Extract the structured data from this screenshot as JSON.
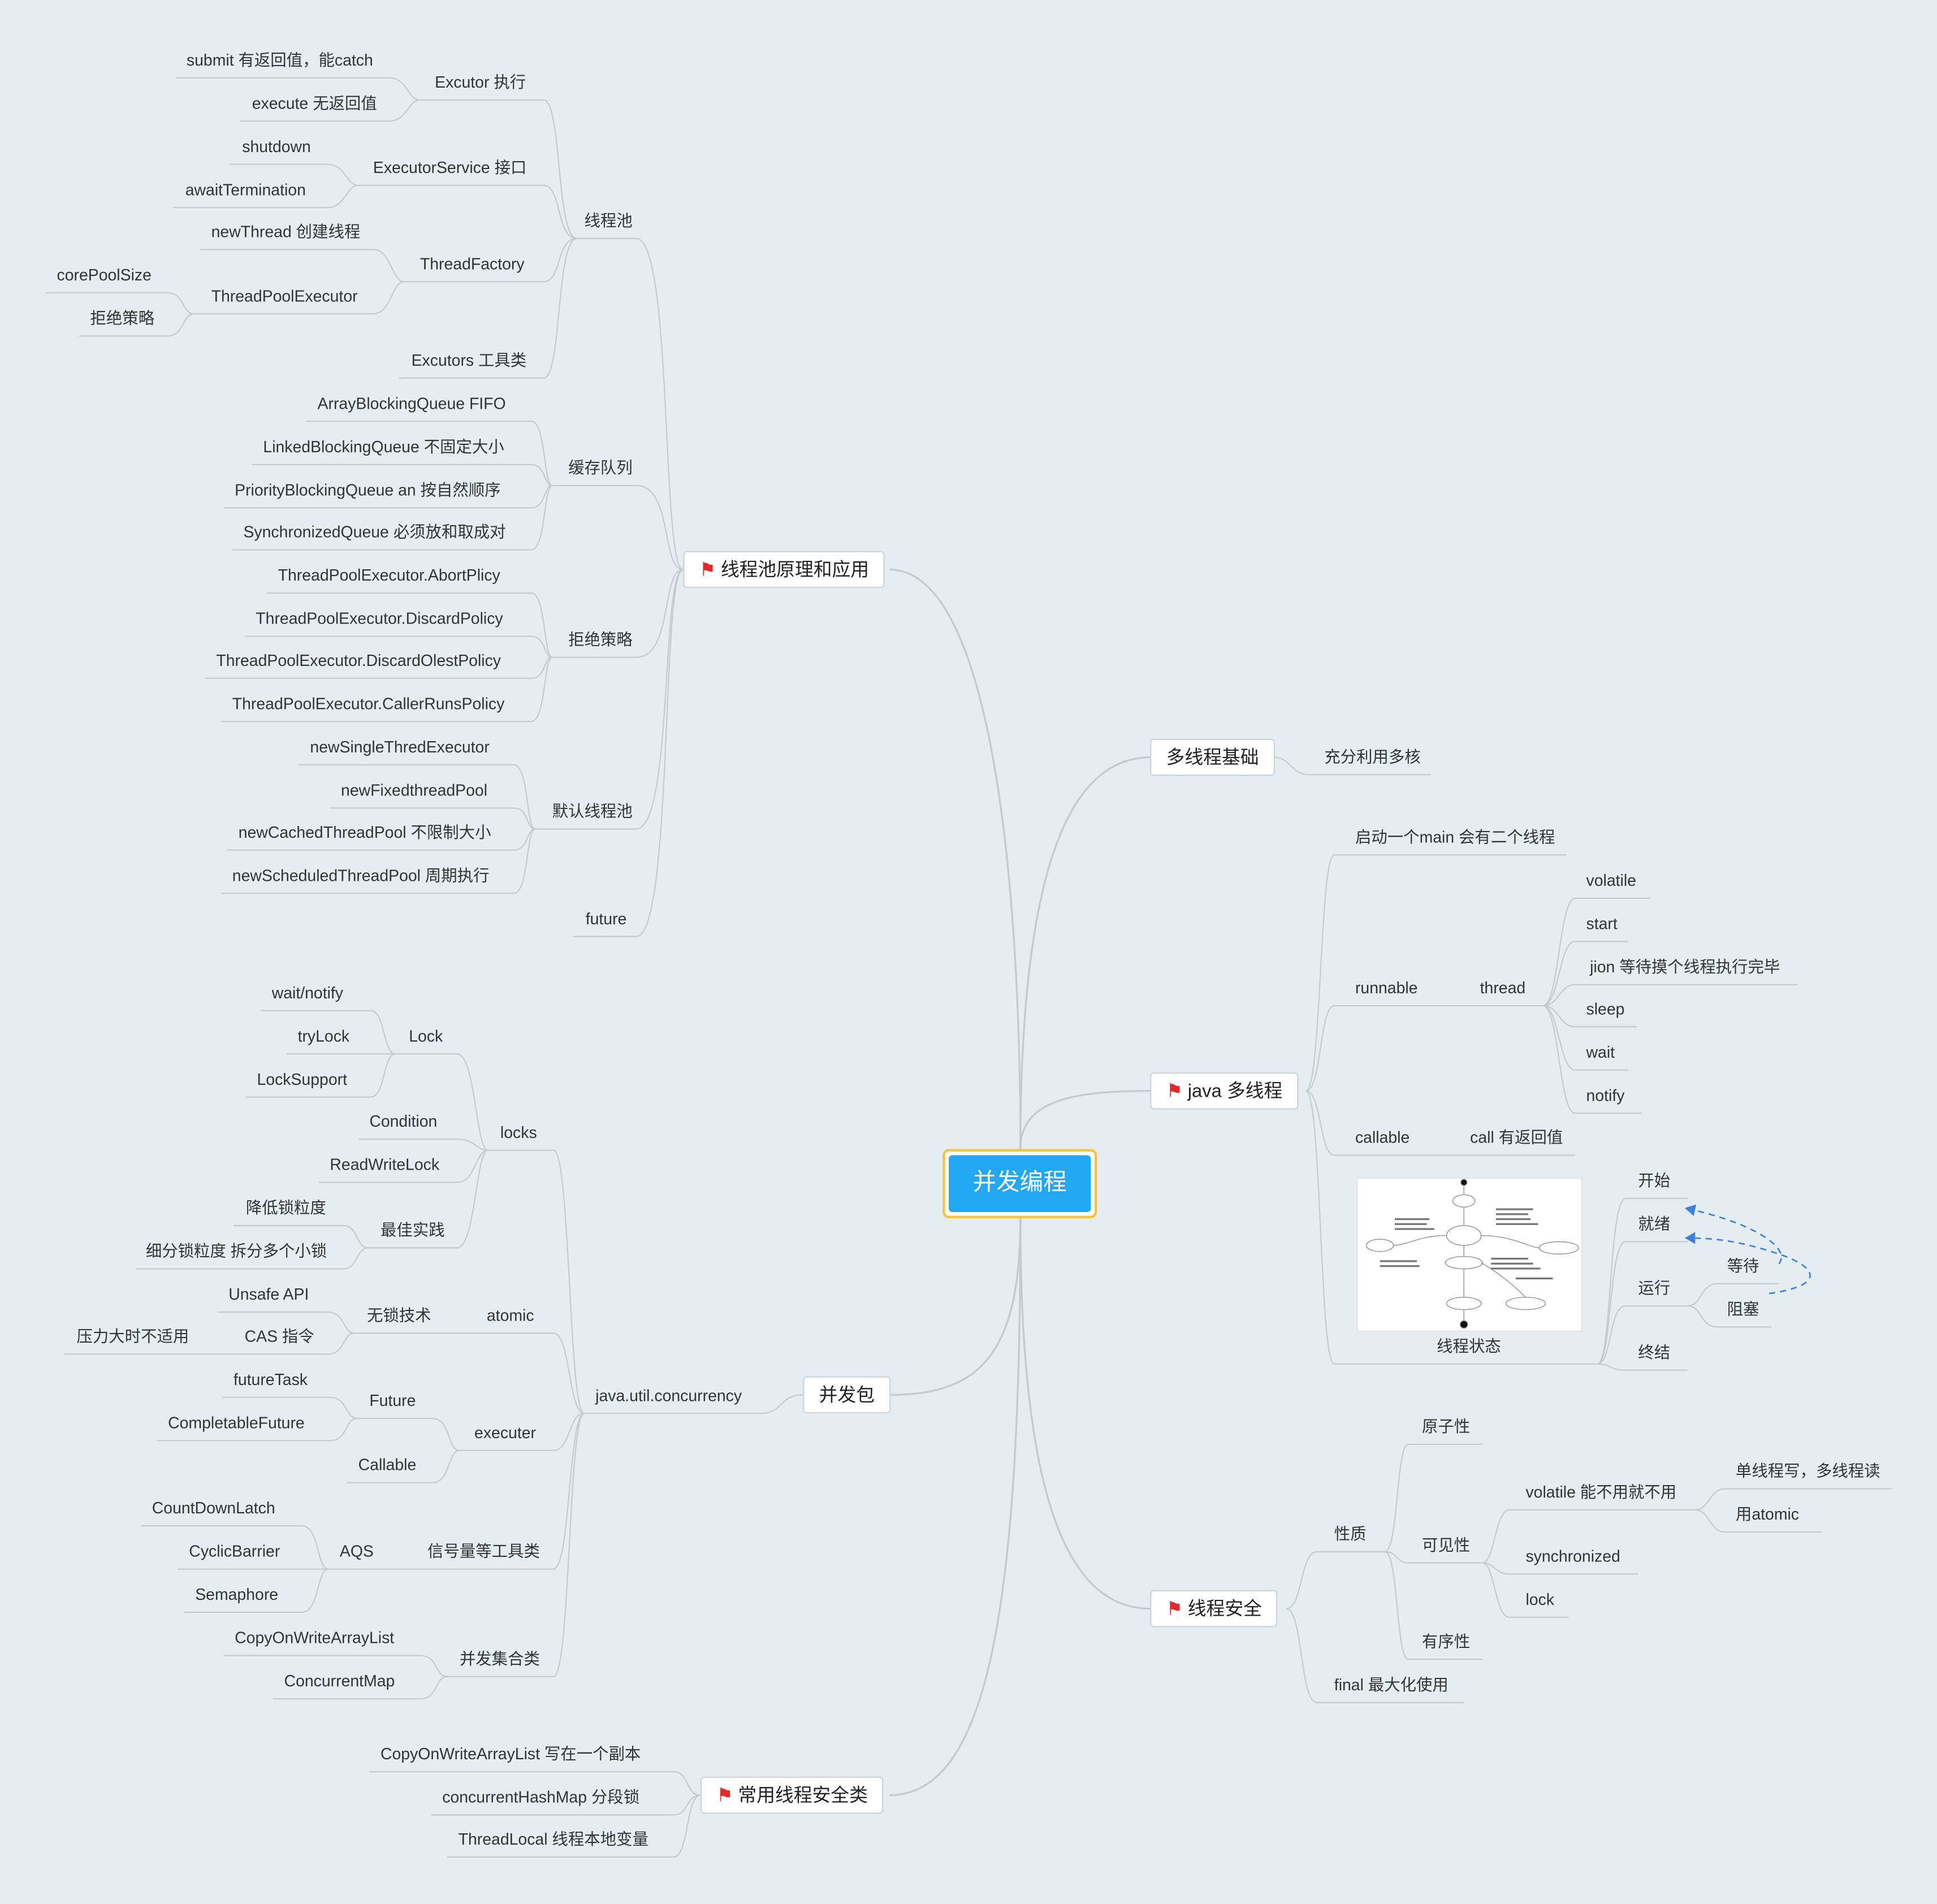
{
  "root": "并发编程",
  "branches": {
    "pool": {
      "title": "线程池原理和应用",
      "threadpool": {
        "label": "线程池",
        "excutor": {
          "label": "Excutor 执行",
          "items": [
            "submit 有返回值，能catch",
            "execute 无返回值"
          ]
        },
        "service": {
          "label": "ExecutorService 接口",
          "items": [
            "shutdown",
            "awaitTermination"
          ]
        },
        "factory": {
          "label": "ThreadFactory",
          "item": "newThread 创建线程",
          "tpe": {
            "label": "ThreadPoolExecutor",
            "items": [
              "corePoolSize",
              "拒绝策略"
            ]
          }
        },
        "tools": "Excutors 工具类"
      },
      "queue": {
        "label": "缓存队列",
        "items": [
          "ArrayBlockingQueue FIFO",
          "LinkedBlockingQueue 不固定大小",
          "PriorityBlockingQueue an 按自然顺序",
          "SynchronizedQueue 必须放和取成对"
        ]
      },
      "reject": {
        "label": "拒绝策略",
        "items": [
          "ThreadPoolExecutor.AbortPlicy",
          "ThreadPoolExecutor.DiscardPolicy",
          "ThreadPoolExecutor.DiscardOlestPolicy",
          "ThreadPoolExecutor.CallerRunsPolicy"
        ]
      },
      "defaults": {
        "label": "默认线程池",
        "items": [
          "newSingleThredExecutor",
          "newFixedthreadPool",
          "newCachedThreadPool 不限制大小",
          "newScheduledThreadPool 周期执行"
        ]
      },
      "future": "future"
    },
    "concurrent": {
      "title": "并发包",
      "juc": "java.util.concurrency",
      "locks": {
        "label": "locks",
        "lock": {
          "label": "Lock",
          "items": [
            "wait/notify",
            "tryLock",
            "LockSupport"
          ]
        },
        "condition": "Condition",
        "rwlock": "ReadWriteLock",
        "best": {
          "label": "最佳实践",
          "items": [
            "降低锁粒度",
            "细分锁粒度 拆分多个小锁"
          ]
        }
      },
      "atomic": {
        "label": "atomic",
        "lockfree": {
          "label": "无锁技术",
          "unsafe": "Unsafe API",
          "cas": "CAS 指令",
          "cas_note": "压力大时不适用"
        }
      },
      "executer": {
        "label": "executer",
        "future": {
          "label": "Future",
          "items": [
            "futureTask",
            "CompletableFuture"
          ]
        },
        "callable": "Callable"
      },
      "sync": {
        "label": "信号量等工具类",
        "aqs": {
          "label": "AQS",
          "items": [
            "CountDownLatch",
            "CyclicBarrier",
            "Semaphore"
          ]
        }
      },
      "collections": {
        "label": "并发集合类",
        "items": [
          "CopyOnWriteArrayList",
          "ConcurrentMap"
        ]
      }
    },
    "safe_classes": {
      "title": "常用线程安全类",
      "items": [
        "CopyOnWriteArrayList 写在一个副本",
        "concurrentHashMap 分段锁",
        "ThreadLocal 线程本地变量"
      ]
    },
    "basics": {
      "title": "多线程基础",
      "item": "充分利用多核"
    },
    "java_mt": {
      "title": "java 多线程",
      "main": "启动一个main 会有二个线程",
      "runnable": "runnable",
      "thread": {
        "label": "thread",
        "items": [
          "volatile",
          "start",
          "jion  等待摸个线程执行完毕",
          "sleep",
          "wait",
          "notify"
        ]
      },
      "callable": "callable",
      "call": "call 有返回值",
      "state": {
        "label": "线程状态",
        "items": [
          "开始",
          "就绪",
          "运行",
          "终结"
        ],
        "run_children": [
          "等待",
          "阻塞"
        ]
      }
    },
    "safety": {
      "title": "线程安全",
      "nature": {
        "label": "性质",
        "atomicity": "原子性",
        "visibility": {
          "label": "可见性",
          "volatile": {
            "label": "volatile 能不用就不用",
            "items": [
              "单线程写，多线程读",
              "用atomic"
            ]
          },
          "others": [
            "synchronized",
            "lock"
          ]
        },
        "ordering": "有序性"
      },
      "final": "final 最大化使用"
    }
  },
  "colors": {
    "background": "#e6edf1",
    "root_fill": "#22a7f2",
    "root_border": "#f5c43b",
    "flag": "#e02a2a",
    "line": "#c4cace",
    "dash_arrow": "#3b7fe0"
  },
  "icons": {
    "flag": "red-flag-icon",
    "image": "thread-state-diagram-image"
  }
}
